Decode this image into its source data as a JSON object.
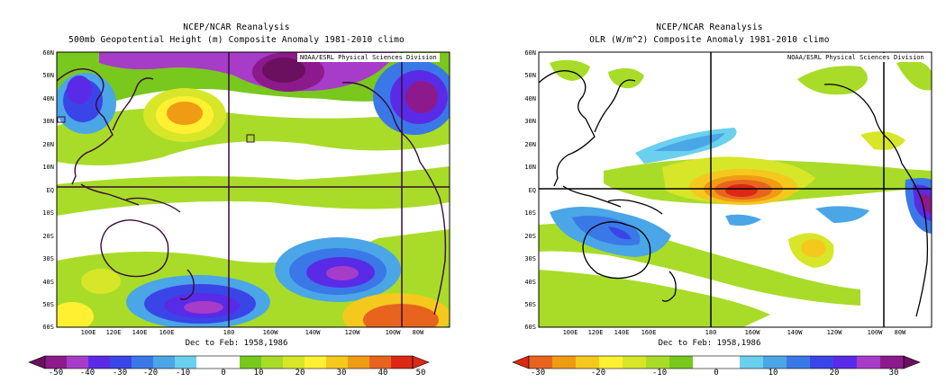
{
  "panels": [
    {
      "title": "NCEP/NCAR Reanalysis",
      "subtitle": "500mb Geopotential Height (m) Composite Anomaly 1981-2010 climo",
      "credit": "NOAA/ESRL Physical Sciences Division",
      "date_label": "Dec to Feb: 1958,1986",
      "lat_labels": [
        "60N",
        "50N",
        "40N",
        "30N",
        "20N",
        "10N",
        "EQ",
        "10S",
        "20S",
        "30S",
        "40S",
        "50S",
        "60S"
      ],
      "lon_labels": [
        "100E",
        "120E",
        "140E",
        "160E",
        "180",
        "160W",
        "140W",
        "120W",
        "100W",
        "80W"
      ],
      "colorbar": {
        "ticks": [
          "-50",
          "-40",
          "-30",
          "-20",
          "-10",
          "0",
          "10",
          "20",
          "30",
          "40",
          "50"
        ],
        "colors": [
          "#6b0f5f",
          "#8c1a8c",
          "#a63cc8",
          "#5a2be6",
          "#3a45e8",
          "#3a78e8",
          "#4aa6e6",
          "#6ad0ee",
          "#ffffff",
          "#ffffff",
          "#78c81e",
          "#a8dc28",
          "#d7e628",
          "#fff032",
          "#f5c81e",
          "#f09b14",
          "#e8641e",
          "#dc2814"
        ]
      }
    },
    {
      "title": "NCEP/NCAR Reanalysis",
      "subtitle": "OLR (W/m^2) Composite Anomaly 1981-2010 climo",
      "credit": "NOAA/ESRL Physical Sciences Division",
      "date_label": "Dec to Feb: 1958,1986",
      "lat_labels": [
        "60N",
        "50N",
        "40N",
        "30N",
        "20N",
        "10N",
        "EQ",
        "10S",
        "20S",
        "30S",
        "40S",
        "50S",
        "60S"
      ],
      "lon_labels": [
        "100E",
        "120E",
        "140E",
        "160E",
        "180",
        "160W",
        "140W",
        "120W",
        "100W",
        "80W"
      ],
      "colorbar": {
        "ticks": [
          "-30",
          "-20",
          "-10",
          "0",
          "10",
          "20",
          "30"
        ],
        "colors": [
          "#dc2814",
          "#e8641e",
          "#f09b14",
          "#f5c81e",
          "#fff032",
          "#d7e628",
          "#a8dc28",
          "#78c81e",
          "#ffffff",
          "#ffffff",
          "#6ad0ee",
          "#4aa6e6",
          "#3a78e8",
          "#3a45e8",
          "#5a2be6",
          "#a63cc8",
          "#8c1a8c",
          "#6b0f5f"
        ]
      }
    }
  ]
}
